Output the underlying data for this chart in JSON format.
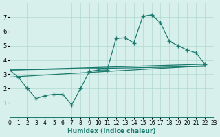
{
  "xlabel": "Humidex (Indice chaleur)",
  "ylabel": "",
  "xlim": [
    0,
    23
  ],
  "ylim": [
    0,
    8
  ],
  "xticks": [
    0,
    1,
    2,
    3,
    4,
    5,
    6,
    7,
    8,
    9,
    10,
    11,
    12,
    13,
    14,
    15,
    16,
    17,
    18,
    19,
    20,
    21,
    22,
    23
  ],
  "yticks": [
    1,
    2,
    3,
    4,
    5,
    6,
    7
  ],
  "bg_color": "#d8f0ec",
  "line_color": "#1a7a6e",
  "grid_color": "#b0d8d0",
  "series1_x": [
    0,
    1,
    2,
    3,
    4,
    5,
    6,
    7,
    8,
    9,
    10,
    11,
    12,
    13,
    14,
    15,
    16,
    17,
    18,
    19,
    20,
    21,
    22
  ],
  "series1_y": [
    3.3,
    2.8,
    2.0,
    1.3,
    1.5,
    1.6,
    1.6,
    0.85,
    2.0,
    3.2,
    3.3,
    3.3,
    5.5,
    5.55,
    5.2,
    7.05,
    7.15,
    6.6,
    5.3,
    5.0,
    4.7,
    4.5,
    3.7
  ],
  "series2_x": [
    0,
    22
  ],
  "series2_y": [
    3.3,
    3.7
  ],
  "series3_x": [
    0,
    22
  ],
  "series3_y": [
    2.8,
    3.6
  ],
  "series4_x": [
    0,
    22
  ],
  "series4_y": [
    3.3,
    3.55
  ]
}
